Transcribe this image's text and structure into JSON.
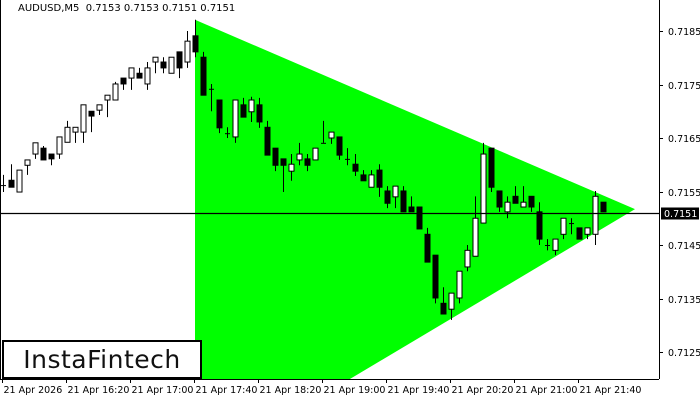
{
  "header": {
    "symbol": "AUDUSD,M5",
    "ohlc": "0.7153 0.7153 0.7151 0.7151"
  },
  "logo": "InstaFintech",
  "colors": {
    "pattern": "#00ff00",
    "bull": "#ffffff",
    "bear": "#000000",
    "axis": "#000000"
  },
  "chart_data": {
    "type": "candlestick",
    "title": "",
    "timeframe": "M5",
    "first_bar": "15:40",
    "interval_minutes": 5,
    "ylim": [
      0.71195,
      0.71905
    ],
    "y_ticks": [
      "0.7185",
      "0.7175",
      "0.7165",
      "0.7155",
      "0.7145",
      "0.7135",
      "0.7125"
    ],
    "x_ticks": [
      {
        "label": "21 Apr 2026",
        "time": "15:40"
      },
      {
        "label": "21 Apr 16:20",
        "time": "16:20"
      },
      {
        "label": "21 Apr 17:00",
        "time": "17:00"
      },
      {
        "label": "21 Apr 17:40",
        "time": "17:40"
      },
      {
        "label": "21 Apr 18:20",
        "time": "18:20"
      },
      {
        "label": "21 Apr 19:00",
        "time": "19:00"
      },
      {
        "label": "21 Apr 19:40",
        "time": "19:40"
      },
      {
        "label": "21 Apr 20:20",
        "time": "20:20"
      },
      {
        "label": "21 Apr 21:00",
        "time": "21:00"
      },
      {
        "label": "21 Apr 21:40",
        "time": "21:40"
      }
    ],
    "current_price": "0.7151",
    "pattern": {
      "type": "triangle",
      "vertices": [
        {
          "time": "17:40",
          "price": 0.71871
        },
        {
          "time": "22:15",
          "price": 0.71517
        },
        {
          "time": "17:40",
          "price": 0.71027
        }
      ]
    },
    "ohlc": [
      [
        0.71562,
        0.71581,
        0.71549,
        0.71562
      ],
      [
        0.71571,
        0.71601,
        0.71558,
        0.71558
      ],
      [
        0.71549,
        0.7159,
        0.71549,
        0.7159
      ],
      [
        0.71599,
        0.71609,
        0.71581,
        0.71609
      ],
      [
        0.7162,
        0.71641,
        0.71611,
        0.71641
      ],
      [
        0.71631,
        0.71635,
        0.71609,
        0.71609
      ],
      [
        0.7162,
        0.7162,
        0.71599,
        0.71611
      ],
      [
        0.7162,
        0.71652,
        0.71611,
        0.71652
      ],
      [
        0.71642,
        0.71682,
        0.71642,
        0.7167
      ],
      [
        0.71661,
        0.7167,
        0.71641,
        0.7167
      ],
      [
        0.71661,
        0.71712,
        0.71641,
        0.71712
      ],
      [
        0.717,
        0.717,
        0.71661,
        0.71691
      ],
      [
        0.71702,
        0.71712,
        0.71693,
        0.71712
      ],
      [
        0.71721,
        0.7173,
        0.71689,
        0.7173
      ],
      [
        0.71721,
        0.71755,
        0.71721,
        0.71751
      ],
      [
        0.71762,
        0.71762,
        0.7174,
        0.71751
      ],
      [
        0.71762,
        0.71781,
        0.7174,
        0.71781
      ],
      [
        0.71771,
        0.71781,
        0.71762,
        0.71762
      ],
      [
        0.71751,
        0.71792,
        0.7174,
        0.71781
      ],
      [
        0.71792,
        0.71801,
        0.71771,
        0.71801
      ],
      [
        0.71792,
        0.71801,
        0.71771,
        0.71781
      ],
      [
        0.71771,
        0.71801,
        0.71771,
        0.71801
      ],
      [
        0.71811,
        0.71811,
        0.71762,
        0.71781
      ],
      [
        0.71792,
        0.7185,
        0.71781,
        0.71831
      ],
      [
        0.71841,
        0.71871,
        0.71801,
        0.71811
      ],
      [
        0.71801,
        0.71811,
        0.7173,
        0.7173
      ],
      [
        0.71742,
        0.71751,
        0.717,
        0.71742
      ],
      [
        0.71721,
        0.71721,
        0.71659,
        0.71669
      ],
      [
        0.71659,
        0.7167,
        0.7165,
        0.71659
      ],
      [
        0.71652,
        0.71721,
        0.71641,
        0.71721
      ],
      [
        0.71712,
        0.71725,
        0.71689,
        0.71689
      ],
      [
        0.71699,
        0.71727,
        0.7168,
        0.71721
      ],
      [
        0.71712,
        0.71725,
        0.71669,
        0.7168
      ],
      [
        0.7167,
        0.71682,
        0.71618,
        0.71618
      ],
      [
        0.71631,
        0.71631,
        0.71588,
        0.71599
      ],
      [
        0.71611,
        0.71611,
        0.71549,
        0.71599
      ],
      [
        0.71588,
        0.7162,
        0.7157,
        0.71601
      ],
      [
        0.71609,
        0.71641,
        0.71599,
        0.7162
      ],
      [
        0.71611,
        0.7162,
        0.71588,
        0.71599
      ],
      [
        0.71609,
        0.71631,
        0.71609,
        0.71631
      ],
      [
        0.71641,
        0.71682,
        0.71641,
        0.71641
      ],
      [
        0.7165,
        0.71661,
        0.71639,
        0.71661
      ],
      [
        0.71652,
        0.71652,
        0.71609,
        0.71618
      ],
      [
        0.71611,
        0.71631,
        0.71599,
        0.71611
      ],
      [
        0.71601,
        0.7162,
        0.71579,
        0.71588
      ],
      [
        0.71581,
        0.7159,
        0.7157,
        0.7157
      ],
      [
        0.71558,
        0.7159,
        0.71558,
        0.71581
      ],
      [
        0.7159,
        0.71601,
        0.7154,
        0.71558
      ],
      [
        0.71551,
        0.7156,
        0.71519,
        0.71528
      ],
      [
        0.7154,
        0.7156,
        0.71519,
        0.7156
      ],
      [
        0.71551,
        0.7156,
        0.71512,
        0.71512
      ],
      [
        0.71521,
        0.71541,
        0.71512,
        0.71512
      ],
      [
        0.71521,
        0.71521,
        0.7148,
        0.7148
      ],
      [
        0.7147,
        0.71482,
        0.71418,
        0.71418
      ],
      [
        0.71431,
        0.71431,
        0.71341,
        0.71351
      ],
      [
        0.71341,
        0.71371,
        0.71321,
        0.71321
      ],
      [
        0.7133,
        0.7136,
        0.7131,
        0.7136
      ],
      [
        0.71351,
        0.71401,
        0.71341,
        0.71401
      ],
      [
        0.71409,
        0.7145,
        0.71401,
        0.7144
      ],
      [
        0.71429,
        0.71541,
        0.71429,
        0.715
      ],
      [
        0.71491,
        0.71641,
        0.71491,
        0.7162
      ],
      [
        0.71631,
        0.71631,
        0.71549,
        0.71558
      ],
      [
        0.71551,
        0.71551,
        0.71512,
        0.71521
      ],
      [
        0.71512,
        0.71541,
        0.715,
        0.7153
      ],
      [
        0.71541,
        0.7156,
        0.71528,
        0.71528
      ],
      [
        0.71521,
        0.7156,
        0.71521,
        0.7153
      ],
      [
        0.71541,
        0.71541,
        0.71512,
        0.71521
      ],
      [
        0.71512,
        0.7153,
        0.7145,
        0.71461
      ],
      [
        0.7145,
        0.71461,
        0.7144,
        0.7145
      ],
      [
        0.7144,
        0.71461,
        0.71431,
        0.71461
      ],
      [
        0.7147,
        0.715,
        0.71461,
        0.715
      ],
      [
        0.71491,
        0.715,
        0.7147,
        0.71491
      ],
      [
        0.71482,
        0.71482,
        0.71461,
        0.71461
      ],
      [
        0.7147,
        0.71482,
        0.71461,
        0.71482
      ],
      [
        0.7147,
        0.71551,
        0.7145,
        0.71541
      ],
      [
        0.7153,
        0.7153,
        0.71512,
        0.71512
      ]
    ]
  }
}
